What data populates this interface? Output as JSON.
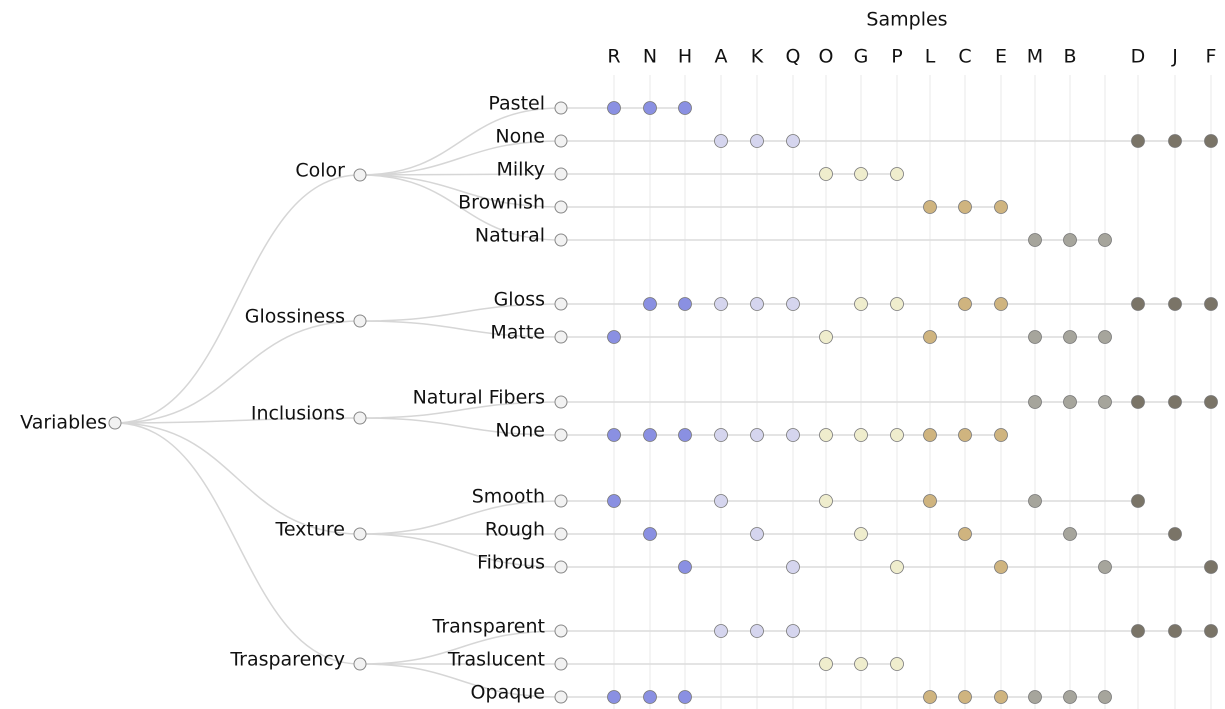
{
  "title": "Samples",
  "root": "Variables",
  "samples": [
    {
      "name": "R",
      "color": "#8a90e2"
    },
    {
      "name": "N",
      "color": "#8a90e2"
    },
    {
      "name": "H",
      "color": "#8a90e2"
    },
    {
      "name": "A",
      "color": "#d5d5ee"
    },
    {
      "name": "K",
      "color": "#d5d5ee"
    },
    {
      "name": "Q",
      "color": "#d5d5ee"
    },
    {
      "name": "O",
      "color": "#efedcd"
    },
    {
      "name": "G",
      "color": "#efedcd"
    },
    {
      "name": "P",
      "color": "#efedcd"
    },
    {
      "name": "L",
      "color": "#cfb47f"
    },
    {
      "name": "C",
      "color": "#cfb47f"
    },
    {
      "name": "E",
      "color": "#cfb47f"
    },
    {
      "name": "M",
      "color": "#a6a59c"
    },
    {
      "name": "B",
      "color": "#a6a59c"
    },
    {
      "name": null,
      "color": "#a6a59c"
    },
    {
      "name": "D",
      "color": "#7a7467"
    },
    {
      "name": "J",
      "color": "#7a7467"
    },
    {
      "name": "F",
      "color": "#7a7467"
    }
  ],
  "variables": [
    {
      "label": "Color",
      "values": [
        {
          "label": "Pastel",
          "samples": [
            0,
            1,
            2
          ]
        },
        {
          "label": "None",
          "samples": [
            3,
            4,
            5,
            15,
            16,
            17
          ]
        },
        {
          "label": "Milky",
          "samples": [
            6,
            7,
            8
          ]
        },
        {
          "label": "Brownish",
          "samples": [
            9,
            10,
            11
          ]
        },
        {
          "label": "Natural",
          "samples": [
            12,
            13,
            14
          ]
        }
      ]
    },
    {
      "label": "Glossiness",
      "values": [
        {
          "label": "Gloss",
          "samples": [
            1,
            2,
            3,
            4,
            5,
            7,
            8,
            10,
            11,
            15,
            16,
            17
          ]
        },
        {
          "label": "Matte",
          "samples": [
            0,
            6,
            9,
            12,
            13,
            14
          ]
        }
      ]
    },
    {
      "label": "Inclusions",
      "values": [
        {
          "label": "Natural Fibers",
          "samples": [
            12,
            13,
            14,
            15,
            16,
            17
          ]
        },
        {
          "label": "None",
          "samples": [
            0,
            1,
            2,
            3,
            4,
            5,
            6,
            7,
            8,
            9,
            10,
            11
          ]
        }
      ]
    },
    {
      "label": "Texture",
      "values": [
        {
          "label": "Smooth",
          "samples": [
            0,
            3,
            6,
            9,
            12,
            15
          ]
        },
        {
          "label": "Rough",
          "samples": [
            1,
            4,
            7,
            10,
            13,
            16
          ]
        },
        {
          "label": "Fibrous",
          "samples": [
            2,
            5,
            8,
            11,
            14,
            17
          ]
        }
      ]
    },
    {
      "label": "Trasparency",
      "values": [
        {
          "label": "Transparent",
          "samples": [
            3,
            4,
            5,
            15,
            16,
            17
          ]
        },
        {
          "label": "Traslucent",
          "samples": [
            6,
            7,
            8
          ]
        },
        {
          "label": "Opaque",
          "samples": [
            0,
            1,
            2,
            9,
            10,
            11,
            12,
            13,
            14
          ]
        }
      ]
    }
  ]
}
